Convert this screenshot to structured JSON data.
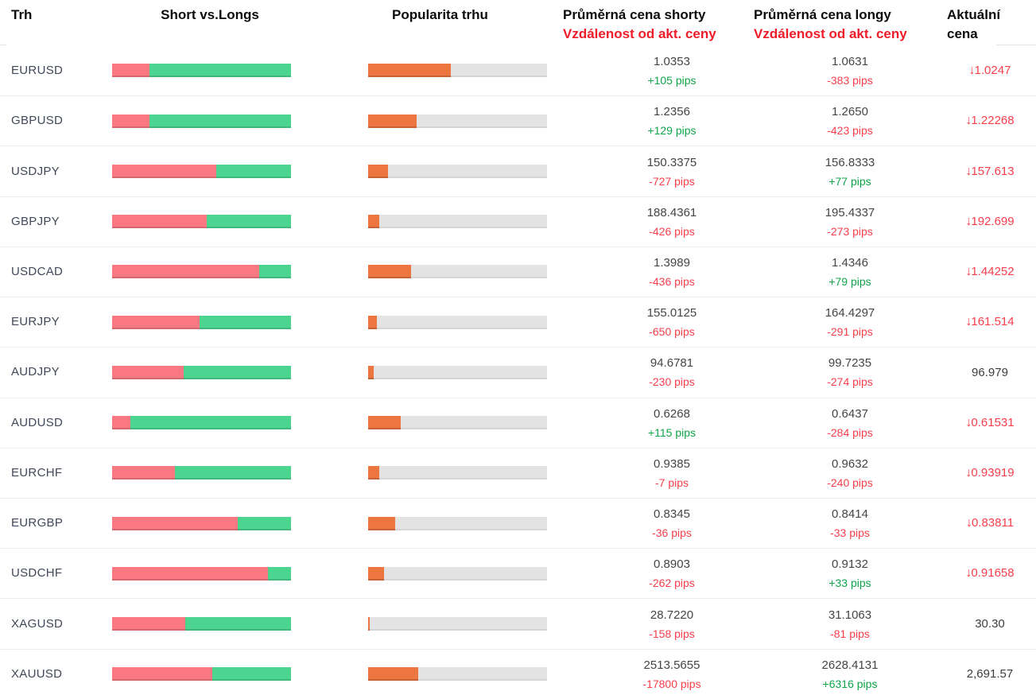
{
  "header": {
    "market": "Trh",
    "short_vs_longs": "Short vs.Longs",
    "popularity": "Popularita trhu",
    "avg_short_line1": "Průměrná cena shorty",
    "avg_short_line2": "Vzdálenost od akt. ceny",
    "avg_long_line1": "Průměrná cena longy",
    "avg_long_line2": "Vzdálenost od akt. ceny",
    "current_line1": "Aktuální",
    "current_line2": "cena"
  },
  "colors": {
    "short_bar": "#f97882",
    "long_bar": "#4bd591",
    "popularity_bar": "#ed7540",
    "bar_track": "#e3e3e3",
    "positive_pips": "#10a44a",
    "negative_pips": "#f83e4b",
    "price_down_red": "#f83e4b",
    "header_red": "#ee1c28"
  },
  "chart_data": {
    "type": "table",
    "columns": [
      "Trh",
      "Short vs.Longs",
      "Popularita trhu",
      "Průměrná cena shorty / Vzdálenost od akt. ceny",
      "Průměrná cena longy / Vzdálenost od akt. ceny",
      "Aktuální cena"
    ],
    "rows": [
      {
        "market": "EURUSD",
        "short_pct": 21,
        "long_pct": 79,
        "popularity_pct": 46,
        "avg_short_price": "1.0353",
        "short_distance": "+105 pips",
        "avg_long_price": "1.0631",
        "long_distance": "-383 pips",
        "current_price": "1.0247",
        "price_arrow_down": true
      },
      {
        "market": "GBPUSD",
        "short_pct": 21,
        "long_pct": 79,
        "popularity_pct": 27,
        "avg_short_price": "1.2356",
        "short_distance": "+129 pips",
        "avg_long_price": "1.2650",
        "long_distance": "-423 pips",
        "current_price": "1.22268",
        "price_arrow_down": true
      },
      {
        "market": "USDJPY",
        "short_pct": 58,
        "long_pct": 42,
        "popularity_pct": 11,
        "avg_short_price": "150.3375",
        "short_distance": "-727 pips",
        "avg_long_price": "156.8333",
        "long_distance": "+77 pips",
        "current_price": "157.613",
        "price_arrow_down": true
      },
      {
        "market": "GBPJPY",
        "short_pct": 53,
        "long_pct": 47,
        "popularity_pct": 6,
        "avg_short_price": "188.4361",
        "short_distance": "-426 pips",
        "avg_long_price": "195.4337",
        "long_distance": "-273 pips",
        "current_price": "192.699",
        "price_arrow_down": true
      },
      {
        "market": "USDCAD",
        "short_pct": 82,
        "long_pct": 18,
        "popularity_pct": 24,
        "avg_short_price": "1.3989",
        "short_distance": "-436 pips",
        "avg_long_price": "1.4346",
        "long_distance": "+79 pips",
        "current_price": "1.44252",
        "price_arrow_down": true
      },
      {
        "market": "EURJPY",
        "short_pct": 49,
        "long_pct": 51,
        "popularity_pct": 5,
        "avg_short_price": "155.0125",
        "short_distance": "-650 pips",
        "avg_long_price": "164.4297",
        "long_distance": "-291 pips",
        "current_price": "161.514",
        "price_arrow_down": true
      },
      {
        "market": "AUDJPY",
        "short_pct": 40,
        "long_pct": 60,
        "popularity_pct": 3,
        "avg_short_price": "94.6781",
        "short_distance": "-230 pips",
        "avg_long_price": "99.7235",
        "long_distance": "-274 pips",
        "current_price": "96.979",
        "price_arrow_down": false
      },
      {
        "market": "AUDUSD",
        "short_pct": 10,
        "long_pct": 90,
        "popularity_pct": 18,
        "avg_short_price": "0.6268",
        "short_distance": "+115 pips",
        "avg_long_price": "0.6437",
        "long_distance": "-284 pips",
        "current_price": "0.61531",
        "price_arrow_down": true
      },
      {
        "market": "EURCHF",
        "short_pct": 35,
        "long_pct": 65,
        "popularity_pct": 6,
        "avg_short_price": "0.9385",
        "short_distance": "-7 pips",
        "avg_long_price": "0.9632",
        "long_distance": "-240 pips",
        "current_price": "0.93919",
        "price_arrow_down": true
      },
      {
        "market": "EURGBP",
        "short_pct": 70,
        "long_pct": 30,
        "popularity_pct": 15,
        "avg_short_price": "0.8345",
        "short_distance": "-36 pips",
        "avg_long_price": "0.8414",
        "long_distance": "-33 pips",
        "current_price": "0.83811",
        "price_arrow_down": true
      },
      {
        "market": "USDCHF",
        "short_pct": 87,
        "long_pct": 13,
        "popularity_pct": 9,
        "avg_short_price": "0.8903",
        "short_distance": "-262 pips",
        "avg_long_price": "0.9132",
        "long_distance": "+33 pips",
        "current_price": "0.91658",
        "price_arrow_down": true
      },
      {
        "market": "XAGUSD",
        "short_pct": 41,
        "long_pct": 59,
        "popularity_pct": 1,
        "avg_short_price": "28.7220",
        "short_distance": "-158 pips",
        "avg_long_price": "31.1063",
        "long_distance": "-81 pips",
        "current_price": "30.30",
        "price_arrow_down": false
      },
      {
        "market": "XAUUSD",
        "short_pct": 56,
        "long_pct": 44,
        "popularity_pct": 28,
        "avg_short_price": "2513.5655",
        "short_distance": "-17800 pips",
        "avg_long_price": "2628.4131",
        "long_distance": "+6316 pips",
        "current_price": "2,691.57",
        "price_arrow_down": false
      }
    ]
  }
}
